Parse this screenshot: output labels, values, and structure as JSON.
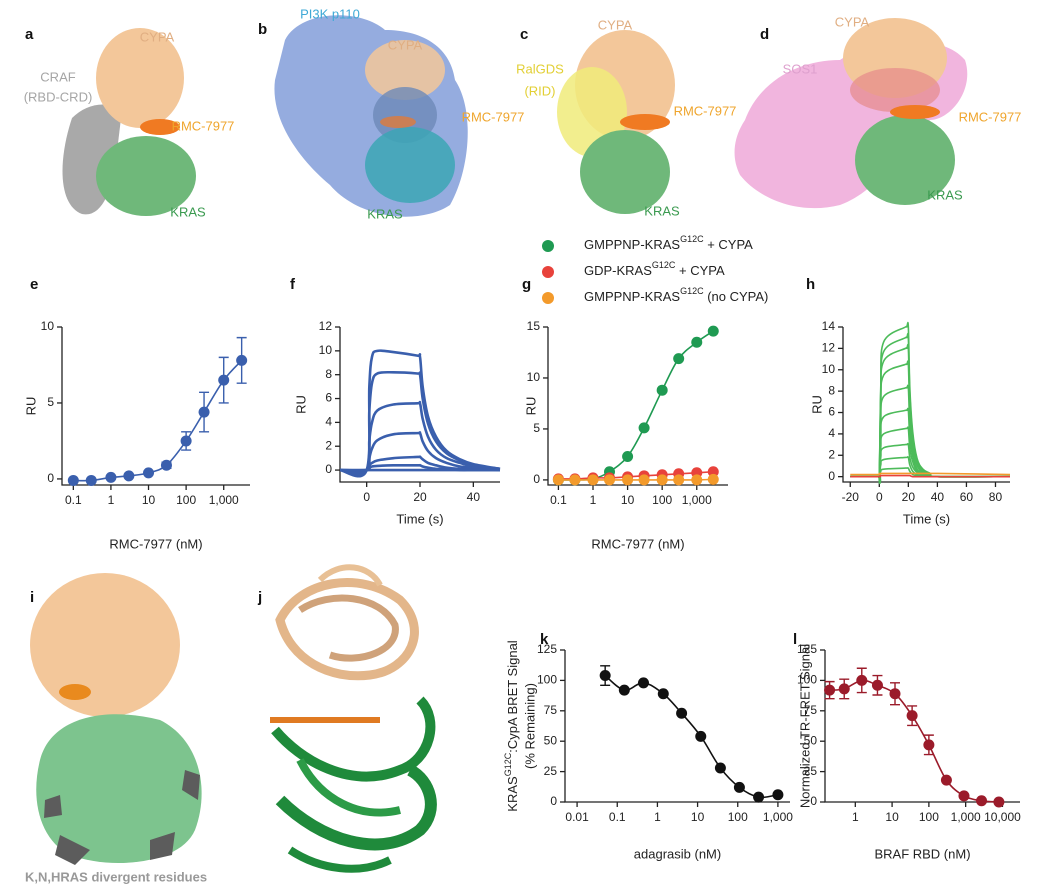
{
  "structures": [
    {
      "letter": "a",
      "labels": [
        "CYPA",
        "CRAF",
        "(RBD-CRD)",
        "RMC-7977",
        "KRAS"
      ]
    },
    {
      "letter": "b",
      "labels": [
        "PI3K p110",
        "CYPA",
        "RMC-7977",
        "KRAS"
      ]
    },
    {
      "letter": "c",
      "labels": [
        "CYPA",
        "RalGDS",
        "(RID)",
        "RMC-7977",
        "KRAS"
      ]
    },
    {
      "letter": "d",
      "labels": [
        "CYPA",
        "SOS1",
        "RMC-7977",
        "KRAS"
      ]
    },
    {
      "letter": "i",
      "labels": [
        "K,N,HRAS divergent residues"
      ]
    },
    {
      "letter": "j"
    }
  ],
  "chart_data": [
    {
      "letter": "e",
      "type": "scatter",
      "xscale": "log",
      "xlabel": "RMC-7977 (nM)",
      "ylabel": "RU",
      "x": [
        0.1,
        0.3,
        1,
        3,
        10,
        30,
        100,
        300,
        1000,
        3000
      ],
      "series": [
        {
          "color": "#3a5fad",
          "values": [
            -0.1,
            -0.1,
            0.1,
            0.2,
            0.4,
            0.9,
            2.5,
            4.4,
            6.5,
            7.8
          ],
          "errors": [
            null,
            null,
            null,
            null,
            null,
            0.2,
            0.6,
            1.3,
            1.5,
            1.5
          ]
        }
      ],
      "xlim": [
        0.05,
        5000
      ],
      "xticks": [
        0.1,
        1,
        10,
        100,
        {
          "value": 1000,
          "label": "1,000"
        }
      ],
      "ylim": [
        -0.4,
        10
      ],
      "yticks": [
        0,
        5,
        10
      ]
    },
    {
      "letter": "f",
      "type": "line",
      "xscale": "linear",
      "xlabel": "Time (s)",
      "ylabel": "RU",
      "x": [
        -10,
        0,
        1,
        2,
        4,
        10,
        19,
        20,
        21,
        23,
        26,
        30,
        35,
        40,
        50
      ],
      "series": [
        {
          "color": "#3a5fad",
          "values": [
            0,
            0,
            7,
            9.5,
            10,
            9.9,
            9.6,
            9.5,
            7,
            4.5,
            2.8,
            1.6,
            0.9,
            0.5,
            0.1
          ]
        },
        {
          "color": "#3a5fad",
          "values": [
            0,
            0,
            5,
            7.3,
            8.1,
            8.2,
            8.1,
            8,
            6,
            3.9,
            2.4,
            1.4,
            0.8,
            0.4,
            0.1
          ]
        },
        {
          "color": "#3a5fad",
          "values": [
            0,
            0,
            2.5,
            4,
            5,
            5.5,
            5.6,
            5.6,
            4.3,
            2.8,
            1.7,
            1,
            0.6,
            0.3,
            0.1
          ]
        },
        {
          "color": "#3a5fad",
          "values": [
            0,
            0,
            1,
            1.8,
            2.5,
            3,
            3.1,
            3.1,
            2.4,
            1.6,
            1,
            0.6,
            0.3,
            0.2,
            0
          ]
        },
        {
          "color": "#3a5fad",
          "values": [
            0,
            0,
            0.4,
            0.6,
            0.8,
            1,
            1.1,
            1.1,
            0.9,
            0.6,
            0.4,
            0.2,
            0.1,
            0.1,
            0
          ]
        },
        {
          "color": "#3a5fad",
          "values": [
            0,
            0,
            0.2,
            0.3,
            0.35,
            0.4,
            0.4,
            0.4,
            0.3,
            0.2,
            0.1,
            0.1,
            0,
            0,
            0
          ]
        },
        {
          "color": "#3a5fad",
          "values": [
            0,
            0,
            0,
            0,
            0,
            0,
            0,
            0,
            0,
            0,
            0,
            0,
            0,
            0,
            0
          ]
        }
      ],
      "xlim": [
        -10,
        50
      ],
      "xticks": [
        0,
        20,
        40
      ],
      "ylim": [
        -1,
        12
      ],
      "yticks": [
        0,
        2,
        4,
        6,
        8,
        10,
        12
      ]
    },
    {
      "letter": "g",
      "type": "scatter",
      "xscale": "log",
      "xlabel": "RMC-7977 (nM)",
      "ylabel": "RU",
      "legend": "top",
      "x": [
        0.1,
        0.3,
        1,
        3,
        10,
        30,
        100,
        300,
        1000,
        3000
      ],
      "series": [
        {
          "name": "GMPPNP-KRAS",
          "name_sup": "G12C",
          "name_suffix": " + CYPA",
          "color": "#1f9a52",
          "values": [
            0,
            0,
            0.1,
            0.8,
            2.3,
            5.1,
            8.8,
            11.9,
            13.5,
            14.6
          ]
        },
        {
          "name": "GDP-KRAS",
          "name_sup": "G12C",
          "name_suffix": " + CYPA",
          "color": "#e8423b",
          "values": [
            0.1,
            0.1,
            0.2,
            0.2,
            0.3,
            0.4,
            0.5,
            0.6,
            0.7,
            0.8
          ]
        },
        {
          "name": "GMPPNP-KRAS",
          "name_sup": "G12C",
          "name_suffix": " (no CYPA)",
          "color": "#f39a2b",
          "values": [
            0,
            0,
            0,
            0,
            0,
            0,
            0,
            0,
            0,
            0.05
          ]
        }
      ],
      "xlim": [
        0.05,
        8000
      ],
      "xticks": [
        0.1,
        1,
        10,
        100,
        {
          "value": 1000,
          "label": "1,000"
        }
      ],
      "ylim": [
        -0.5,
        15
      ],
      "yticks": [
        0,
        5,
        10,
        15
      ]
    },
    {
      "letter": "h",
      "type": "line",
      "xscale": "linear",
      "xlabel": "Time (s)",
      "ylabel": "RU",
      "x": [
        -20,
        -1,
        0,
        1,
        3,
        18,
        19,
        20,
        21,
        23,
        26,
        30,
        35,
        40,
        90
      ],
      "series": [
        {
          "color": "#4dbb5a",
          "values": [
            0,
            0,
            0,
            8.4,
            12.6,
            14,
            14,
            14,
            8.4,
            4.2,
            1.7,
            0.7,
            0.3,
            0,
            0
          ]
        },
        {
          "color": "#4dbb5a",
          "values": [
            0,
            0,
            0,
            7.8,
            11.7,
            13,
            13,
            13,
            7.8,
            3.9,
            1.6,
            0.7,
            0.3,
            0,
            0
          ]
        },
        {
          "color": "#4dbb5a",
          "values": [
            0,
            0,
            0,
            7.2,
            10.8,
            12,
            12,
            12,
            7.2,
            3.6,
            1.4,
            0.6,
            0.2,
            0,
            0
          ]
        },
        {
          "color": "#4dbb5a",
          "values": [
            0,
            0,
            0,
            6.3,
            9.5,
            10.5,
            10.5,
            10.5,
            6.3,
            3.2,
            1.3,
            0.5,
            0.2,
            0,
            0
          ]
        },
        {
          "color": "#4dbb5a",
          "values": [
            0,
            0,
            0,
            5,
            7.5,
            8.3,
            8.3,
            8.3,
            5,
            2.5,
            1,
            0.4,
            0.2,
            0,
            0
          ]
        },
        {
          "color": "#4dbb5a",
          "values": [
            0,
            0,
            0,
            3.7,
            5.6,
            6.2,
            6.2,
            6.2,
            3.7,
            1.9,
            0.7,
            0.3,
            0.1,
            0,
            0
          ]
        },
        {
          "color": "#4dbb5a",
          "values": [
            0,
            0,
            0,
            2.7,
            4,
            4.5,
            4.5,
            4.5,
            2.7,
            1.4,
            0.5,
            0.2,
            0.1,
            0,
            0
          ]
        },
        {
          "color": "#4dbb5a",
          "values": [
            0,
            0,
            0,
            1.8,
            2.7,
            3,
            3,
            3,
            1.8,
            0.9,
            0.4,
            0.2,
            0.1,
            0,
            0
          ]
        },
        {
          "color": "#4dbb5a",
          "values": [
            0,
            0,
            0,
            1.1,
            1.6,
            1.8,
            1.8,
            1.8,
            1.1,
            0.5,
            0.2,
            0.1,
            0,
            0,
            0
          ]
        },
        {
          "color": "#4dbb5a",
          "values": [
            0,
            0,
            0,
            0.5,
            0.7,
            0.8,
            0.8,
            0.8,
            0.5,
            0.2,
            0.1,
            0,
            0,
            0,
            0
          ]
        },
        {
          "color": "#e8423b",
          "values": [
            0,
            0,
            0,
            0.1,
            0.1,
            0.1,
            0.1,
            0.1,
            0.1,
            0,
            0,
            0,
            0,
            0,
            0
          ]
        },
        {
          "color": "#f39a2b",
          "values": [
            0.2,
            0.2,
            0.3,
            0.3,
            0.3,
            0.3,
            0.3,
            0.3,
            0.3,
            0.3,
            0.3,
            0.3,
            0.3,
            0.3,
            0.2
          ]
        }
      ],
      "xlim": [
        -25,
        90
      ],
      "xticks": [
        -20,
        0,
        20,
        40,
        60,
        80
      ],
      "ylim": [
        -0.5,
        14
      ],
      "yticks": [
        0,
        2,
        4,
        6,
        8,
        10,
        12,
        14
      ]
    },
    {
      "letter": "k",
      "type": "scatter",
      "xscale": "log",
      "xlabel": "adagrasib (nM)",
      "ylabel": {
        "text": "KRAS",
        "sup": "G12C",
        "rest": ":CypA BRET Signal",
        "line2": "(% Remaining)"
      },
      "x": [
        0.05,
        0.15,
        0.45,
        1.4,
        4,
        12,
        37,
        110,
        330,
        1000
      ],
      "series": [
        {
          "color": "#111111",
          "values": [
            104,
            92,
            98,
            89,
            73,
            54,
            28,
            12,
            4,
            6
          ],
          "errors": [
            8,
            null,
            null,
            null,
            null,
            null,
            null,
            null,
            null,
            null
          ]
        }
      ],
      "xlim": [
        0.005,
        2000
      ],
      "xticks": [
        0.01,
        0.1,
        1,
        10,
        100,
        {
          "value": 1000,
          "label": "1,000"
        }
      ],
      "ylim": [
        0,
        125
      ],
      "yticks": [
        0,
        25,
        50,
        75,
        100,
        125
      ]
    },
    {
      "letter": "l",
      "type": "scatter",
      "xscale": "log",
      "xlabel": "BRAF RBD (nM)",
      "ylabel": "Normalized TR-FRET Signal",
      "x": [
        0.2,
        0.5,
        1.5,
        4,
        12,
        35,
        100,
        300,
        900,
        2700,
        8000
      ],
      "series": [
        {
          "color": "#9b1b2a",
          "values": [
            92,
            93,
            100,
            96,
            89,
            71,
            47,
            18,
            5,
            1,
            0
          ],
          "errors": [
            7,
            8,
            10,
            8,
            9,
            8,
            8,
            null,
            null,
            null,
            null
          ]
        }
      ],
      "xlim": [
        0.15,
        30000
      ],
      "xticks": [
        1,
        10,
        100,
        {
          "value": 1000,
          "label": "1,000"
        },
        {
          "value": 10000,
          "label": "10,000"
        }
      ],
      "ylim": [
        0,
        125
      ],
      "yticks": [
        0,
        25,
        50,
        75,
        100,
        125
      ]
    }
  ]
}
